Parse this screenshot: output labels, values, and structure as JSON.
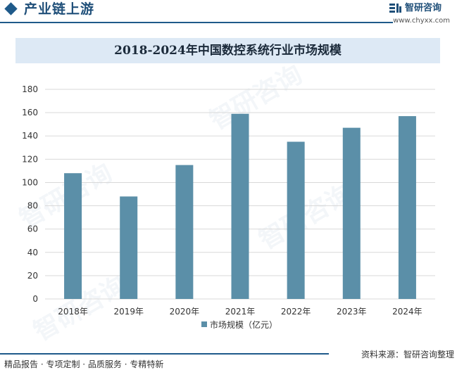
{
  "header": {
    "title": "产业链上游",
    "brand_name": "智研咨询",
    "brand_url": "www.chyxx.com"
  },
  "footer": {
    "left_text": "精品报告 · 专项定制 · 品质服务 · 专精特新",
    "source": "资料来源：智研咨询整理"
  },
  "watermark_text": "智研咨询",
  "colors": {
    "accent": "#1f5a8a",
    "bar": "#5b8fa8",
    "title_band": "#dde9f5"
  },
  "chart_data": {
    "type": "bar",
    "title": "2018-2024年中国数控系统行业市场规模",
    "categories": [
      "2018年",
      "2019年",
      "2020年",
      "2021年",
      "2022年",
      "2023年",
      "2024年"
    ],
    "series": [
      {
        "name": "市场规模（亿元）",
        "values": [
          108,
          88,
          115,
          159,
          135,
          147,
          157
        ]
      }
    ],
    "ylim": [
      0,
      180
    ],
    "yticks": [
      0,
      20,
      40,
      60,
      80,
      100,
      120,
      140,
      160,
      180
    ],
    "grid": true,
    "legend": "bottom"
  }
}
